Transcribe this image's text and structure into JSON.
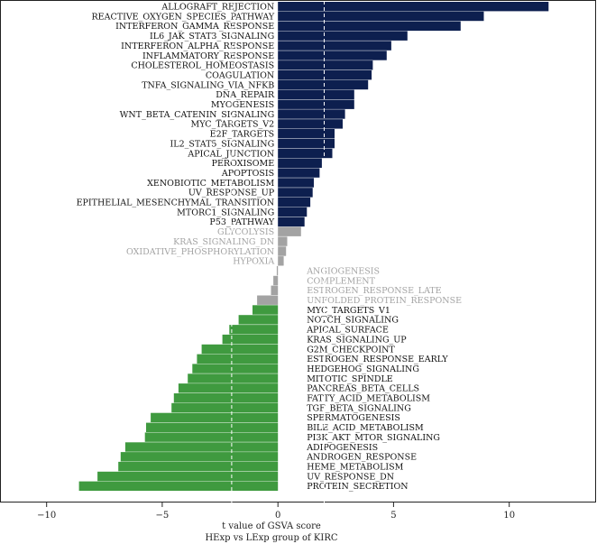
{
  "chart_data": {
    "type": "bar",
    "orientation": "horizontal",
    "xlabel": "t value of GSVA score",
    "subtitle": "HExp vs LExp group of KIRC",
    "xlim": [
      -12.4,
      12.4
    ],
    "xticks": [
      -10,
      -5,
      0,
      5,
      10
    ],
    "xtick_labels": [
      "−10",
      "−5",
      "0",
      "5",
      "10"
    ],
    "significance_threshold": 2,
    "colors": {
      "up": "#0d1f4f",
      "down": "#3f9a3f",
      "ns": "#a3a3a3",
      "ns_text": "#a3a3a3",
      "text": "#111111"
    },
    "categories": [
      "ALLOGRAFT_REJECTION",
      "REACTIVE_OXYGEN_SPECIES_PATHWAY",
      "INTERFERON_GAMMA_RESPONSE",
      "IL6_JAK_STAT3_SIGNALING",
      "INTERFERON_ALPHA_RESPONSE",
      "INFLAMMATORY_RESPONSE",
      "CHOLESTEROL_HOMEOSTASIS",
      "COAGULATION",
      "TNFA_SIGNALING_VIA_NFKB",
      "DNA_REPAIR",
      "MYOGENESIS",
      "WNT_BETA_CATENIN_SIGNALING",
      "MYC_TARGETS_V2",
      "E2F_TARGETS",
      "IL2_STAT5_SIGNALING",
      "APICAL_JUNCTION",
      "PEROXISOME",
      "APOPTOSIS",
      "XENOBIOTIC_METABOLISM",
      "UV_RESPONSE_UP",
      "EPITHELIAL_MESENCHYMAL_TRANSITION",
      "MTORC1_SIGNALING",
      "P53_PATHWAY",
      "GLYCOLYSIS",
      "KRAS_SIGNALING_DN",
      "OXIDATIVE_PHOSPHORYLATION",
      "HYPOXIA",
      "ANGIOGENESIS",
      "COMPLEMENT",
      "ESTROGEN_RESPONSE_LATE",
      "UNFOLDED_PROTEIN_RESPONSE",
      "MYC_TARGETS_V1",
      "NOTCH_SIGNALING",
      "APICAL_SURFACE",
      "KRAS_SIGNALING_UP",
      "G2M_CHECKPOINT",
      "ESTROGEN_RESPONSE_EARLY",
      "HEDGEHOG_SIGNALING",
      "MITOTIC_SPINDLE",
      "PANCREAS_BETA_CELLS",
      "FATTY_ACID_METABOLISM",
      "TGF_BETA_SIGNALING",
      "SPERMATOGENESIS",
      "BILE_ACID_METABOLISM",
      "PI3K_AKT_MTOR_SIGNALING",
      "ADIPOGENESIS",
      "ANDROGEN_RESPONSE",
      "HEME_METABOLISM",
      "UV_RESPONSE_DN",
      "PROTEIN_SECRETION"
    ],
    "values": [
      11.7,
      8.9,
      7.9,
      5.6,
      4.9,
      4.7,
      4.1,
      4.05,
      3.9,
      3.3,
      3.3,
      2.9,
      2.8,
      2.45,
      2.45,
      2.35,
      1.9,
      1.8,
      1.55,
      1.5,
      1.4,
      1.25,
      1.15,
      1.0,
      0.4,
      0.35,
      0.25,
      -0.05,
      -0.2,
      -0.3,
      -0.9,
      -1.1,
      -1.7,
      -2.1,
      -2.4,
      -3.3,
      -3.5,
      -3.7,
      -3.9,
      -4.3,
      -4.5,
      -4.6,
      -5.5,
      -5.7,
      -5.75,
      -6.6,
      -6.8,
      -6.9,
      -7.8,
      -8.6
    ]
  }
}
